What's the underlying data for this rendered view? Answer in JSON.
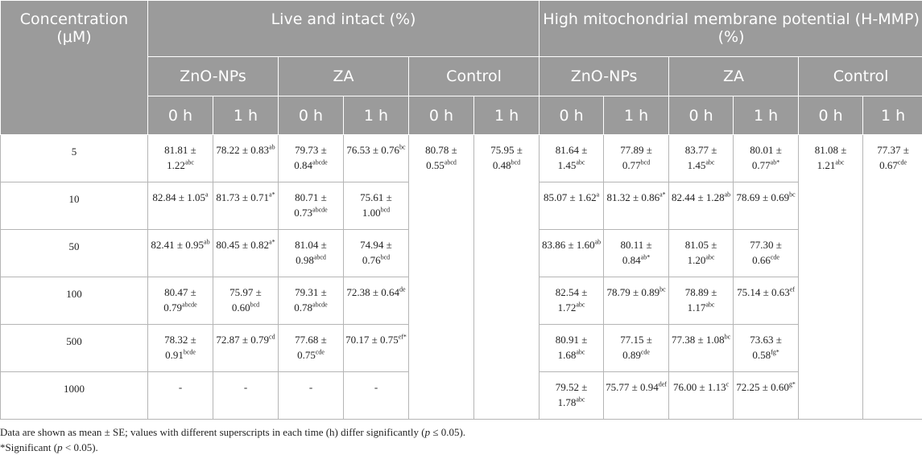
{
  "header": {
    "concentration": "Concentration (μM)",
    "live_group": "Live and intact (%)",
    "mmp_group": "High mitochondrial membrane potential (H-MMP) (%)",
    "sub_groups": [
      "ZnO-NPs",
      "ZA",
      "Control",
      "ZnO-NPs",
      "ZA",
      "Control"
    ],
    "times": [
      "0 h",
      "1 h",
      "0 h",
      "1 h",
      "0 h",
      "1 h",
      "0 h",
      "1 h",
      "0 h",
      "1 h",
      "0 h",
      "1 h"
    ]
  },
  "rows": [
    {
      "conc": "5",
      "cells": [
        {
          "v": "81.81 ± 1.22",
          "s": "abc"
        },
        {
          "v": "78.22 ± 0.83",
          "s": "ab"
        },
        {
          "v": "79.73 ± 0.84",
          "s": "abcde"
        },
        {
          "v": "76.53 ± 0.76",
          "s": "bc"
        },
        {
          "v": "81.64 ± 1.45",
          "s": "abc"
        },
        {
          "v": "77.89 ± 0.77",
          "s": "bcd"
        },
        {
          "v": "83.77 ± 1.45",
          "s": "abc"
        },
        {
          "v": "80.01 ± 0.77",
          "s": "ab*"
        }
      ]
    },
    {
      "conc": "10",
      "cells": [
        {
          "v": "82.84 ± 1.05",
          "s": "a"
        },
        {
          "v": "81.73 ± 0.71",
          "s": "a*"
        },
        {
          "v": "80.71 ± 0.73",
          "s": "abcde"
        },
        {
          "v": "75.61 ± 1.00",
          "s": "bcd"
        },
        {
          "v": "85.07 ± 1.62",
          "s": "a"
        },
        {
          "v": "81.32 ± 0.86",
          "s": "a*"
        },
        {
          "v": "82.44 ± 1.28",
          "s": "ab"
        },
        {
          "v": "78.69 ± 0.69",
          "s": "bc"
        }
      ]
    },
    {
      "conc": "50",
      "cells": [
        {
          "v": "82.41 ± 0.95",
          "s": "ab"
        },
        {
          "v": "80.45 ± 0.82",
          "s": "a*"
        },
        {
          "v": "81.04 ± 0.98",
          "s": "abcd"
        },
        {
          "v": "74.94 ± 0.76",
          "s": "bcd"
        },
        {
          "v": "83.86 ± 1.60",
          "s": "ab"
        },
        {
          "v": "80.11 ± 0.84",
          "s": "ab*"
        },
        {
          "v": "81.05 ± 1.20",
          "s": "abc"
        },
        {
          "v": "77.30 ± 0.66",
          "s": "cde"
        }
      ]
    },
    {
      "conc": "100",
      "cells": [
        {
          "v": "80.47 ± 0.79",
          "s": "abcde"
        },
        {
          "v": "75.97 ± 0.60",
          "s": "bcd"
        },
        {
          "v": "79.31 ± 0.78",
          "s": "abcde"
        },
        {
          "v": "72.38 ± 0.64",
          "s": "de"
        },
        {
          "v": "82.54 ± 1.72",
          "s": "abc"
        },
        {
          "v": "78.79 ± 0.89",
          "s": "bc"
        },
        {
          "v": "78.89 ± 1.17",
          "s": "abc"
        },
        {
          "v": "75.14 ± 0.63",
          "s": "ef"
        }
      ]
    },
    {
      "conc": "500",
      "cells": [
        {
          "v": "78.32 ± 0.91",
          "s": "bcde"
        },
        {
          "v": "72.87 ± 0.79",
          "s": "cd"
        },
        {
          "v": "77.68 ± 0.75",
          "s": "cde"
        },
        {
          "v": "70.17 ± 0.75",
          "s": "ef*"
        },
        {
          "v": "80.91 ± 1.68",
          "s": "abc"
        },
        {
          "v": "77.15 ± 0.89",
          "s": "cde"
        },
        {
          "v": "77.38 ± 1.08",
          "s": "bc"
        },
        {
          "v": "73.63 ± 0.58",
          "s": "fg*"
        }
      ]
    },
    {
      "conc": "1000",
      "cells": [
        {
          "v": "-",
          "s": ""
        },
        {
          "v": "-",
          "s": ""
        },
        {
          "v": "-",
          "s": ""
        },
        {
          "v": "-",
          "s": ""
        },
        {
          "v": "79.52 ± 1.78",
          "s": "abc"
        },
        {
          "v": "75.77 ± 0.94",
          "s": "def"
        },
        {
          "v": "76.00 ± 1.13",
          "s": "c"
        },
        {
          "v": "72.25 ± 0.60",
          "s": "g*"
        }
      ]
    }
  ],
  "controls": [
    {
      "v": "80.78 ± 0.55",
      "s": "abcd"
    },
    {
      "v": "75.95 ± 0.48",
      "s": "bcd"
    },
    {
      "v": "81.08 ± 1.21",
      "s": "abc"
    },
    {
      "v": "77.37 ± 0.67",
      "s": "cde"
    }
  ],
  "notes": {
    "line1_a": "Data are shown as mean ± SE; values with different superscripts in each time (h) differ significantly (",
    "line1_p": "p",
    "line1_b": " ≤ 0.05).",
    "line2_a": "*Significant (",
    "line2_p": "p",
    "line2_b": " < 0.05)."
  }
}
